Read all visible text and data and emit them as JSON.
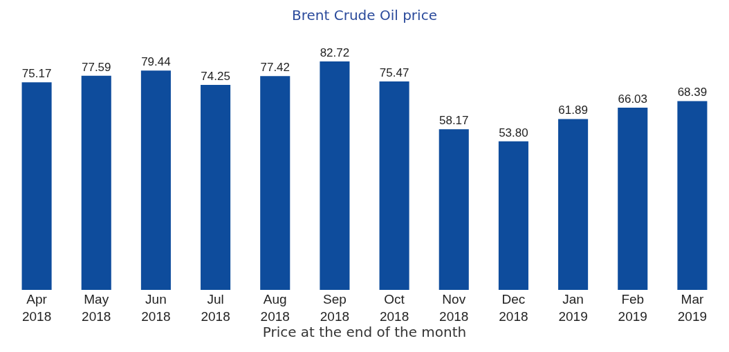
{
  "chart_data": {
    "type": "bar",
    "title": "Brent Crude Oil price",
    "xlabel": "Price at the end of the month",
    "categories": [
      "Apr 2018",
      "May 2018",
      "Jun 2018",
      "Jul 2018",
      "Aug 2018",
      "Sep 2018",
      "Oct 2018",
      "Nov 2018",
      "Dec 2018",
      "Jan 2019",
      "Feb 2019",
      "Mar 2019"
    ],
    "values": [
      75.17,
      77.59,
      79.44,
      74.25,
      77.42,
      82.72,
      75.47,
      58.17,
      53.8,
      61.89,
      66.03,
      68.39
    ],
    "value_labels": [
      "75.17",
      "77.59",
      "79.44",
      "74.25",
      "77.42",
      "82.72",
      "75.47",
      "58.17",
      "53.80",
      "61.89",
      "66.03",
      "68.39"
    ],
    "color": "#0e4c9c",
    "grid": false,
    "legend": false
  }
}
